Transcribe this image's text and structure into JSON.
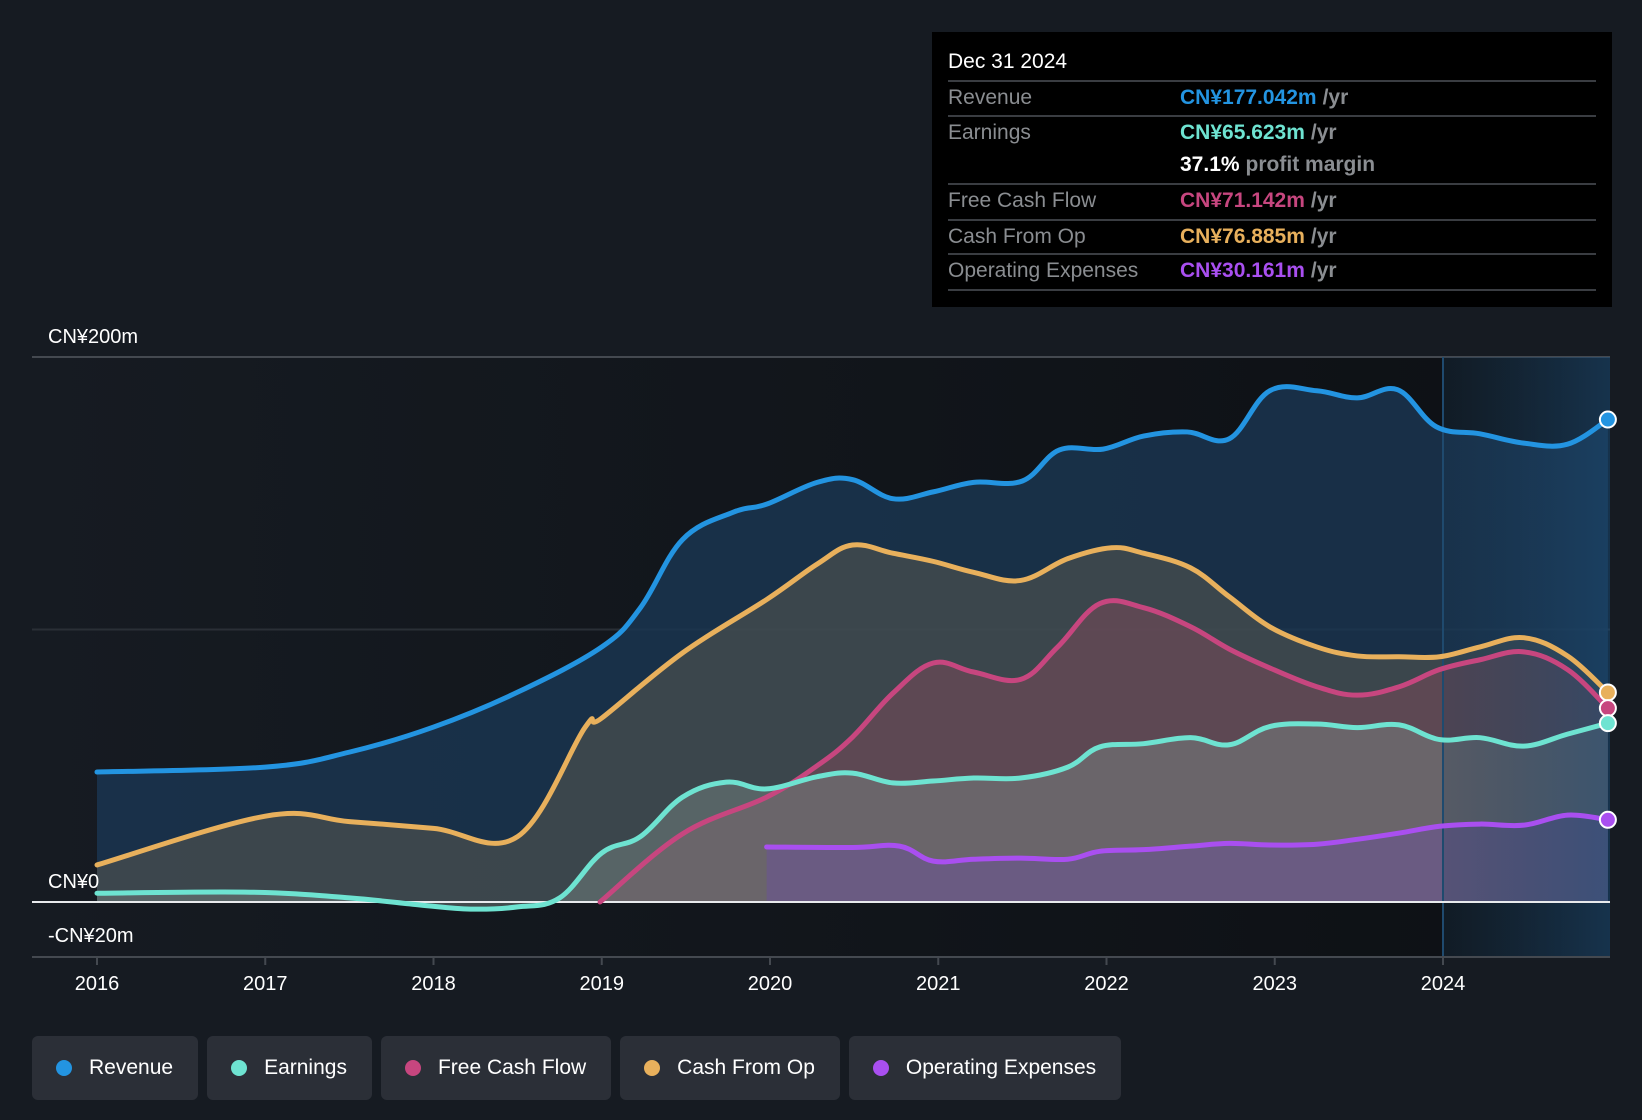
{
  "tooltip": {
    "date": "Dec 31 2024",
    "rows": [
      {
        "label": "Revenue",
        "value": "CN¥177.042m",
        "unit": "/yr",
        "color": "#2394e1"
      },
      {
        "label": "Earnings",
        "value": "CN¥65.623m",
        "unit": "/yr",
        "color": "#6ee3d1"
      },
      {
        "label": "",
        "margin_value": "37.1%",
        "margin_text": "profit margin"
      },
      {
        "label": "Free Cash Flow",
        "value": "CN¥71.142m",
        "unit": "/yr",
        "color": "#c7467f"
      },
      {
        "label": "Cash From Op",
        "value": "CN¥76.885m",
        "unit": "/yr",
        "color": "#e8b05c"
      },
      {
        "label": "Operating Expenses",
        "value": "CN¥30.161m",
        "unit": "/yr",
        "color": "#a94ff0"
      }
    ]
  },
  "legend": [
    {
      "label": "Revenue",
      "color": "#2394e1"
    },
    {
      "label": "Earnings",
      "color": "#6ee3d1"
    },
    {
      "label": "Free Cash Flow",
      "color": "#c7467f"
    },
    {
      "label": "Cash From Op",
      "color": "#e8b05c"
    },
    {
      "label": "Operating Expenses",
      "color": "#a94ff0"
    }
  ],
  "chart_data": {
    "type": "area",
    "title": "",
    "xlabel": "",
    "ylabel": "",
    "currency_unit": "CN¥ millions",
    "x_ticks": [
      "2016",
      "2017",
      "2018",
      "2019",
      "2020",
      "2021",
      "2022",
      "2023",
      "2024"
    ],
    "x_range": [
      2015.63,
      2024.98
    ],
    "y_ticks": [
      {
        "value": 200,
        "label": "CN¥200m"
      },
      {
        "value": 100,
        "label": ""
      },
      {
        "value": 0,
        "label": "CN¥0"
      },
      {
        "value": -20,
        "label": "-CN¥20m"
      }
    ],
    "ylim": [
      -20,
      200
    ],
    "highlight_from": 2024.0,
    "grid": true,
    "legend_position": "bottom-left",
    "series": [
      {
        "name": "Revenue",
        "color": "#2394e1",
        "points": [
          [
            2016.0,
            47.7
          ],
          [
            2017.0,
            49.5
          ],
          [
            2017.5,
            55
          ],
          [
            2018.0,
            64.2
          ],
          [
            2018.5,
            77
          ],
          [
            2019.0,
            93.6
          ],
          [
            2019.23,
            108
          ],
          [
            2019.48,
            133
          ],
          [
            2019.78,
            143
          ],
          [
            2019.98,
            146
          ],
          [
            2020.28,
            154
          ],
          [
            2020.49,
            155
          ],
          [
            2020.73,
            148
          ],
          [
            2020.97,
            150.5
          ],
          [
            2021.21,
            154
          ],
          [
            2021.5,
            154.5
          ],
          [
            2021.72,
            165.9
          ],
          [
            2021.98,
            166.2
          ],
          [
            2022.22,
            171
          ],
          [
            2022.48,
            172.5
          ],
          [
            2022.73,
            170
          ],
          [
            2022.97,
            187.6
          ],
          [
            2023.25,
            187.6
          ],
          [
            2023.49,
            185
          ],
          [
            2023.73,
            188
          ],
          [
            2023.96,
            174.4
          ],
          [
            2024.22,
            171.8
          ],
          [
            2024.48,
            168.4
          ],
          [
            2024.74,
            168
          ],
          [
            2024.98,
            177.042
          ]
        ]
      },
      {
        "name": "Cash From Op",
        "color": "#e8b05c",
        "points": [
          [
            2016.0,
            13.6
          ],
          [
            2017.0,
            31.5
          ],
          [
            2017.5,
            29.5
          ],
          [
            2018.0,
            27
          ],
          [
            2018.5,
            24
          ],
          [
            2018.9,
            64
          ],
          [
            2019.0,
            67.5
          ],
          [
            2019.48,
            91.4
          ],
          [
            2019.98,
            111
          ],
          [
            2020.28,
            124
          ],
          [
            2020.49,
            131
          ],
          [
            2020.73,
            128
          ],
          [
            2020.97,
            125
          ],
          [
            2021.21,
            121
          ],
          [
            2021.49,
            118
          ],
          [
            2021.77,
            126
          ],
          [
            2022.03,
            130
          ],
          [
            2022.22,
            128
          ],
          [
            2022.5,
            122.6
          ],
          [
            2022.73,
            112
          ],
          [
            2022.97,
            101
          ],
          [
            2023.25,
            93.6
          ],
          [
            2023.49,
            90.3
          ],
          [
            2023.74,
            90
          ],
          [
            2023.98,
            90
          ],
          [
            2024.22,
            93.6
          ],
          [
            2024.48,
            97
          ],
          [
            2024.74,
            90.3
          ],
          [
            2024.98,
            76.885
          ]
        ]
      },
      {
        "name": "Free Cash Flow",
        "color": "#c7467f",
        "points": [
          [
            2018.99,
            0
          ],
          [
            2019.48,
            25
          ],
          [
            2019.98,
            38.5
          ],
          [
            2020.28,
            50
          ],
          [
            2020.49,
            60.5
          ],
          [
            2020.73,
            76.6
          ],
          [
            2020.97,
            87.7
          ],
          [
            2021.21,
            84.4
          ],
          [
            2021.49,
            81.7
          ],
          [
            2021.71,
            93.6
          ],
          [
            2021.96,
            109.5
          ],
          [
            2022.22,
            108
          ],
          [
            2022.5,
            101
          ],
          [
            2022.73,
            92.8
          ],
          [
            2022.97,
            85.9
          ],
          [
            2023.25,
            79
          ],
          [
            2023.49,
            75.9
          ],
          [
            2023.74,
            79
          ],
          [
            2023.98,
            85.3
          ],
          [
            2024.22,
            88.9
          ],
          [
            2024.48,
            91.8
          ],
          [
            2024.74,
            85.3
          ],
          [
            2024.98,
            71.142
          ]
        ]
      },
      {
        "name": "Earnings",
        "color": "#6ee3d1",
        "points": [
          [
            2016.0,
            3.2
          ],
          [
            2016.91,
            3.6
          ],
          [
            2017.5,
            1.5
          ],
          [
            2017.92,
            -1.1
          ],
          [
            2018.22,
            -2.6
          ],
          [
            2018.5,
            -1.8
          ],
          [
            2018.75,
            1.5
          ],
          [
            2019.0,
            18
          ],
          [
            2019.23,
            24
          ],
          [
            2019.48,
            38.5
          ],
          [
            2019.74,
            44
          ],
          [
            2019.98,
            41.5
          ],
          [
            2020.28,
            46
          ],
          [
            2020.49,
            47.3
          ],
          [
            2020.73,
            43.7
          ],
          [
            2020.97,
            44.4
          ],
          [
            2021.21,
            45.5
          ],
          [
            2021.49,
            45.5
          ],
          [
            2021.77,
            49.5
          ],
          [
            2021.96,
            56.9
          ],
          [
            2022.22,
            58.1
          ],
          [
            2022.5,
            60.3
          ],
          [
            2022.73,
            57.7
          ],
          [
            2022.97,
            64.4
          ],
          [
            2023.25,
            65.3
          ],
          [
            2023.49,
            64
          ],
          [
            2023.74,
            65
          ],
          [
            2023.98,
            59.6
          ],
          [
            2024.22,
            60.3
          ],
          [
            2024.48,
            57.2
          ],
          [
            2024.74,
            61.6
          ],
          [
            2024.98,
            65.623
          ]
        ]
      },
      {
        "name": "Operating Expenses",
        "color": "#a94ff0",
        "points": [
          [
            2019.98,
            20.2
          ],
          [
            2020.49,
            20
          ],
          [
            2020.77,
            20.5
          ],
          [
            2020.97,
            15
          ],
          [
            2021.21,
            15.7
          ],
          [
            2021.49,
            16.1
          ],
          [
            2021.77,
            15.7
          ],
          [
            2021.96,
            18.6
          ],
          [
            2022.22,
            19.2
          ],
          [
            2022.5,
            20.5
          ],
          [
            2022.73,
            21.5
          ],
          [
            2022.97,
            20.9
          ],
          [
            2023.25,
            21.2
          ],
          [
            2023.49,
            23
          ],
          [
            2023.74,
            25.3
          ],
          [
            2023.98,
            27.8
          ],
          [
            2024.22,
            28.6
          ],
          [
            2024.48,
            28.2
          ],
          [
            2024.74,
            31.9
          ],
          [
            2024.98,
            30.161
          ]
        ]
      }
    ]
  }
}
